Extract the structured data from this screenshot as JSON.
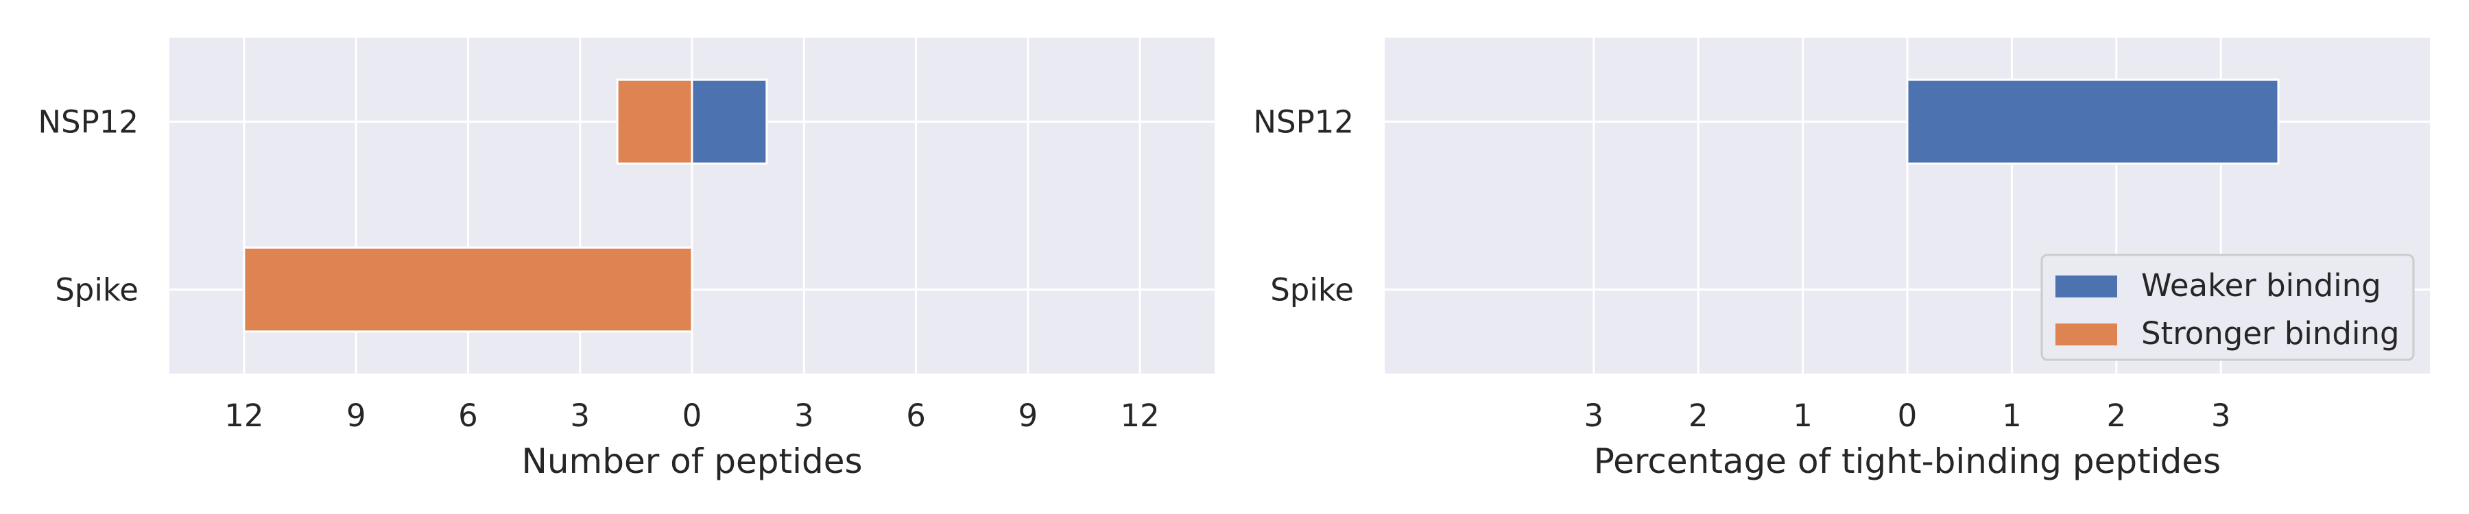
{
  "chart_data": [
    {
      "type": "bar",
      "orientation": "horizontal",
      "title": "",
      "xlabel": "Number of peptides",
      "ylabel": "",
      "categories": [
        "NSP12",
        "Spike"
      ],
      "xlim": [
        -14,
        14
      ],
      "xticks": [
        -12,
        -9,
        -6,
        -3,
        0,
        3,
        6,
        9,
        12
      ],
      "xtick_labels": [
        "12",
        "9",
        "6",
        "3",
        "0",
        "3",
        "6",
        "9",
        "12"
      ],
      "grid": true,
      "series": [
        {
          "name": "Weaker binding",
          "color": "#4c72b0",
          "values": [
            2,
            0
          ]
        },
        {
          "name": "Stronger binding",
          "color": "#dd8452",
          "values": [
            -2,
            -12
          ]
        }
      ]
    },
    {
      "type": "bar",
      "orientation": "horizontal",
      "title": "",
      "xlabel": "Percentage of tight-binding peptides",
      "ylabel": "",
      "categories": [
        "NSP12",
        "Spike"
      ],
      "xlim": [
        -5,
        5
      ],
      "xticks": [
        -3,
        -2,
        -1,
        0,
        1,
        2,
        3
      ],
      "xtick_labels": [
        "3",
        "2",
        "1",
        "0",
        "1",
        "2",
        "3"
      ],
      "grid": true,
      "legend_position": "lower-right",
      "series": [
        {
          "name": "Weaker binding",
          "color": "#4c72b0",
          "values": [
            3.55,
            0
          ]
        },
        {
          "name": "Stronger binding",
          "color": "#dd8452",
          "values": [
            0,
            0
          ]
        }
      ]
    }
  ]
}
